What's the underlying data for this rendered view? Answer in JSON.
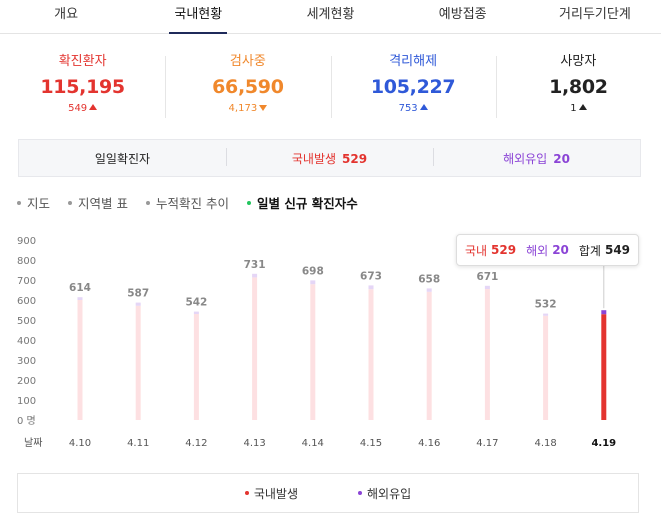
{
  "tabs": [
    {
      "label": "개요",
      "active": false
    },
    {
      "label": "국내현황",
      "active": true
    },
    {
      "label": "세계현황",
      "active": false
    },
    {
      "label": "예방접종",
      "active": false
    },
    {
      "label": "거리두기단계",
      "active": false
    }
  ],
  "stats": [
    {
      "label": "확진환자",
      "value": "115,195",
      "change": "549",
      "direction": "up",
      "color": "#e3342f"
    },
    {
      "label": "검사중",
      "value": "66,590",
      "change": "4,173",
      "direction": "down",
      "color": "#f0882c"
    },
    {
      "label": "격리해제",
      "value": "105,227",
      "change": "753",
      "direction": "up",
      "color": "#2f59d8"
    },
    {
      "label": "사망자",
      "value": "1,802",
      "change": "1",
      "direction": "up",
      "color": "#222222"
    }
  ],
  "daily": {
    "label": "일일확진자",
    "domestic_label": "국내발생",
    "domestic_value": "529",
    "overseas_label": "해외유입",
    "overseas_value": "20"
  },
  "chart_menu": [
    {
      "label": "지도",
      "active": false
    },
    {
      "label": "지역별 표",
      "active": false
    },
    {
      "label": "누적확진 추이",
      "active": false
    },
    {
      "label": "일별 신규 확진자수",
      "active": true
    }
  ],
  "colors": {
    "domestic": "#e3342f",
    "overseas": "#8b44d6",
    "bar_faded": "#fde0e2",
    "bar_cap_faded": "#e5d6f6"
  },
  "tooltip": {
    "domestic_label": "국내",
    "domestic_value": "529",
    "overseas_label": "해외",
    "overseas_value": "20",
    "total_label": "합계",
    "total_value": "549"
  },
  "chart_data": {
    "type": "bar",
    "stacked": true,
    "xlabel": "날짜",
    "ylabel": "",
    "ylim": [
      0,
      900
    ],
    "yticks": [
      0,
      100,
      200,
      300,
      400,
      500,
      600,
      700,
      800,
      900
    ],
    "ytick_labels": [
      "0 명",
      "100",
      "200",
      "300",
      "400",
      "500",
      "600",
      "700",
      "800",
      "900"
    ],
    "categories": [
      "4.10",
      "4.11",
      "4.12",
      "4.13",
      "4.14",
      "4.15",
      "4.16",
      "4.17",
      "4.18",
      "4.19"
    ],
    "series": [
      {
        "name": "국내발생",
        "values": [
          600,
          571,
          530,
          713,
          679,
          654,
          641,
          655,
          521,
          529
        ]
      },
      {
        "name": "해외유입",
        "values": [
          14,
          16,
          12,
          18,
          19,
          19,
          17,
          16,
          11,
          20
        ]
      }
    ],
    "totals": [
      614,
      587,
      542,
      731,
      698,
      673,
      658,
      671,
      532,
      549
    ],
    "labeled_points": [
      true,
      true,
      true,
      true,
      true,
      true,
      true,
      true,
      true,
      false
    ],
    "highlighted_index": 9,
    "grid": false
  },
  "legend": [
    {
      "label": "국내발생",
      "color": "#e3342f"
    },
    {
      "label": "해외유입",
      "color": "#8b44d6"
    }
  ]
}
